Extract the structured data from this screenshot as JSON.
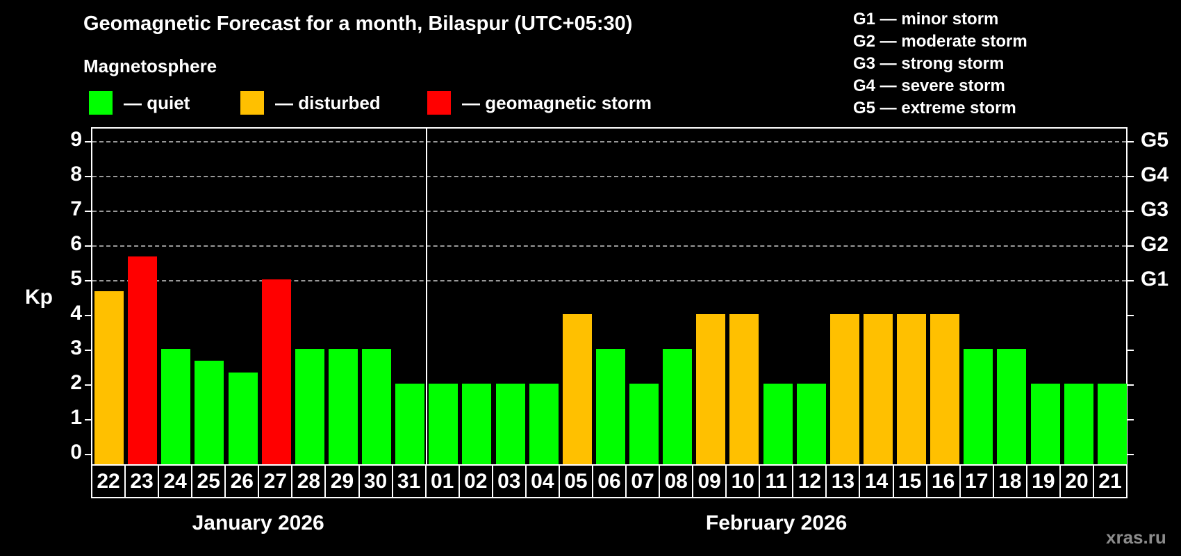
{
  "title": "Geomagnetic Forecast for a month, Bilaspur (UTC+05:30)",
  "subtitle": "Magnetosphere",
  "watermark": "xras.ru",
  "legend": {
    "items": [
      {
        "state": "quiet",
        "color": "#00ff00",
        "label": "— quiet"
      },
      {
        "state": "disturbed",
        "color": "#ffc000",
        "label": "— disturbed"
      },
      {
        "state": "storm",
        "color": "#ff0000",
        "label": "— geomagnetic storm"
      }
    ]
  },
  "storm_scale_legend": [
    "G1 — minor storm",
    "G2 — moderate storm",
    "G3 — strong storm",
    "G4 — severe storm",
    "G5 — extreme storm"
  ],
  "chart_data": {
    "type": "bar",
    "ylabel": "Kp",
    "ylim": [
      0,
      9
    ],
    "yticks": [
      0,
      1,
      2,
      3,
      4,
      5,
      6,
      7,
      8,
      9
    ],
    "gridlines_at": [
      5,
      6,
      7,
      8,
      9
    ],
    "grid_style": "dashed-horizontal",
    "right_axis": [
      {
        "label": "G1",
        "kp": 5
      },
      {
        "label": "G2",
        "kp": 6
      },
      {
        "label": "G3",
        "kp": 7
      },
      {
        "label": "G4",
        "kp": 8
      },
      {
        "label": "G5",
        "kp": 9
      }
    ],
    "color_map": {
      "quiet": "#00ff00",
      "disturbed": "#ffc000",
      "storm": "#ff0000"
    },
    "months": [
      {
        "label": "January 2026",
        "bars": [
          {
            "day": "22",
            "kp": 4.67,
            "state": "disturbed"
          },
          {
            "day": "23",
            "kp": 5.67,
            "state": "storm"
          },
          {
            "day": "24",
            "kp": 3,
            "state": "quiet"
          },
          {
            "day": "25",
            "kp": 2.67,
            "state": "quiet"
          },
          {
            "day": "26",
            "kp": 2.33,
            "state": "quiet"
          },
          {
            "day": "27",
            "kp": 5,
            "state": "storm"
          },
          {
            "day": "28",
            "kp": 3,
            "state": "quiet"
          },
          {
            "day": "29",
            "kp": 3,
            "state": "quiet"
          },
          {
            "day": "30",
            "kp": 3,
            "state": "quiet"
          },
          {
            "day": "31",
            "kp": 2,
            "state": "quiet"
          }
        ]
      },
      {
        "label": "February 2026",
        "bars": [
          {
            "day": "01",
            "kp": 2,
            "state": "quiet"
          },
          {
            "day": "02",
            "kp": 2,
            "state": "quiet"
          },
          {
            "day": "03",
            "kp": 2,
            "state": "quiet"
          },
          {
            "day": "04",
            "kp": 2,
            "state": "quiet"
          },
          {
            "day": "05",
            "kp": 4,
            "state": "disturbed"
          },
          {
            "day": "06",
            "kp": 3,
            "state": "quiet"
          },
          {
            "day": "07",
            "kp": 2,
            "state": "quiet"
          },
          {
            "day": "08",
            "kp": 3,
            "state": "quiet"
          },
          {
            "day": "09",
            "kp": 4,
            "state": "disturbed"
          },
          {
            "day": "10",
            "kp": 4,
            "state": "disturbed"
          },
          {
            "day": "11",
            "kp": 2,
            "state": "quiet"
          },
          {
            "day": "12",
            "kp": 2,
            "state": "quiet"
          },
          {
            "day": "13",
            "kp": 4,
            "state": "disturbed"
          },
          {
            "day": "14",
            "kp": 4,
            "state": "disturbed"
          },
          {
            "day": "15",
            "kp": 4,
            "state": "disturbed"
          },
          {
            "day": "16",
            "kp": 4,
            "state": "disturbed"
          },
          {
            "day": "17",
            "kp": 3,
            "state": "quiet"
          },
          {
            "day": "18",
            "kp": 3,
            "state": "quiet"
          },
          {
            "day": "19",
            "kp": 2,
            "state": "quiet"
          },
          {
            "day": "20",
            "kp": 2,
            "state": "quiet"
          },
          {
            "day": "21",
            "kp": 2,
            "state": "quiet"
          }
        ]
      }
    ]
  }
}
